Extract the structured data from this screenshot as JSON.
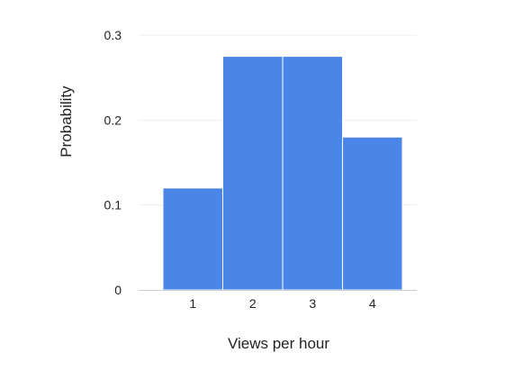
{
  "chart_data": {
    "type": "bar",
    "title": "",
    "xlabel": "Views per hour",
    "ylabel": "Probability",
    "categories": [
      "1",
      "2",
      "3",
      "4"
    ],
    "values": [
      0.12,
      0.275,
      0.275,
      0.18
    ],
    "ylim": [
      0,
      0.3
    ],
    "yticks": [
      "0",
      "0.1",
      "0.2",
      "0.3"
    ],
    "ytick_values": [
      0,
      0.1,
      0.2,
      0.3
    ],
    "grid": true,
    "legend": "none",
    "colors": {
      "bar": "#4a86e8",
      "bar_separator": "#ffffff",
      "grid": "#eeeeee",
      "axis": "#cccccc",
      "text": "#222222"
    }
  }
}
